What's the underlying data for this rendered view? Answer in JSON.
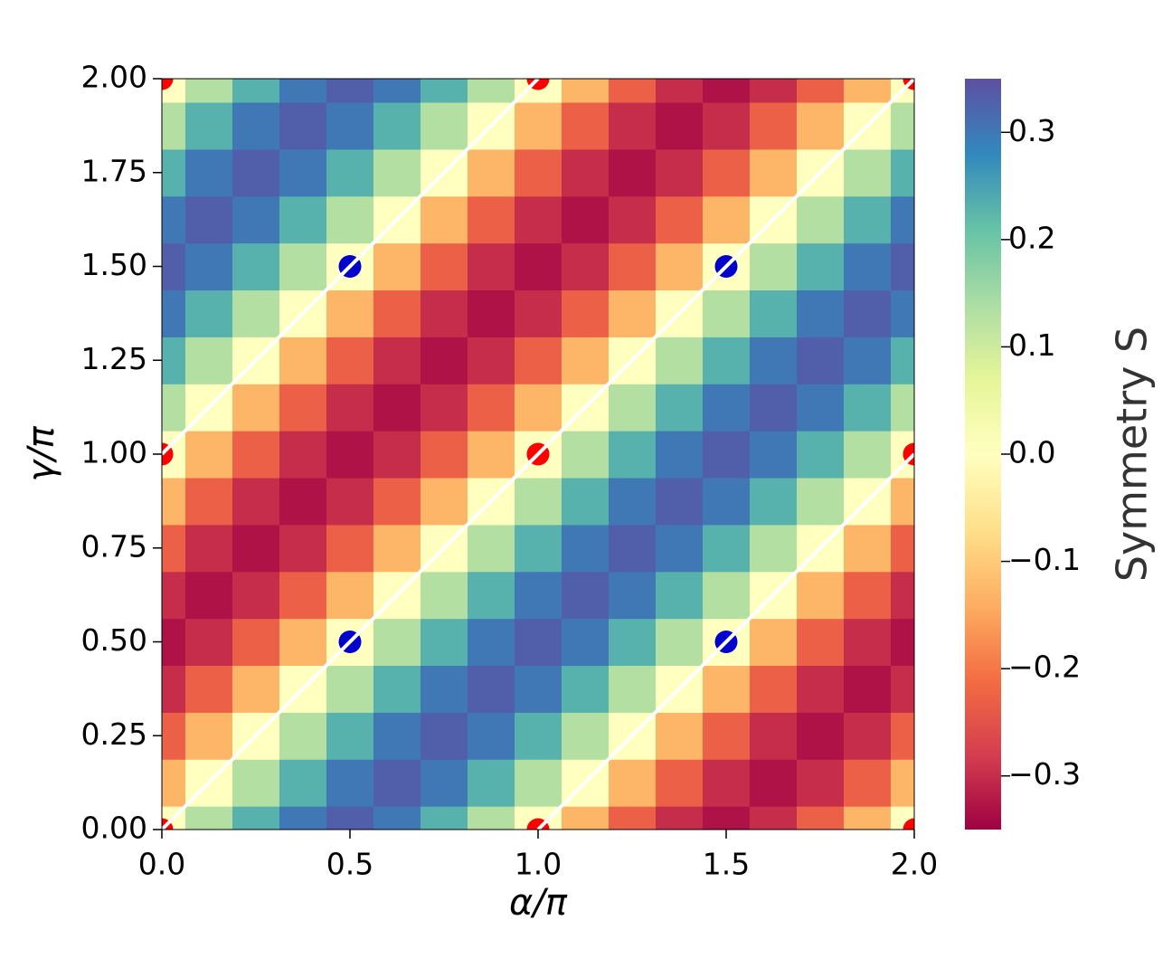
{
  "chart_data": {
    "type": "heatmap",
    "xlabel": "α/π",
    "ylabel": "γ/π",
    "colorbar_label": "Symmetry S",
    "colormap": "Spectral",
    "xlim": [
      0,
      2
    ],
    "ylim": [
      0,
      2
    ],
    "clim": [
      -0.35,
      0.35
    ],
    "xticks": [
      {
        "value": 0,
        "label": "0.0"
      },
      0.5,
      {
        "value": 1,
        "label": "1.0"
      },
      1.5,
      {
        "value": 2,
        "label": "2.0"
      }
    ],
    "yticks": [
      {
        "value": 0,
        "label": "0.00"
      },
      0.25,
      {
        "value": 0.5,
        "label": "0.50"
      },
      0.75,
      {
        "value": 1,
        "label": "1.00"
      },
      1.25,
      {
        "value": 1.5,
        "label": "1.50"
      },
      1.75,
      {
        "value": 2,
        "label": "2.00"
      }
    ],
    "cticks": [
      {
        "value": -0.3,
        "label": "−0.3"
      },
      {
        "value": -0.2,
        "label": "−0.2"
      },
      {
        "value": -0.1,
        "label": "−0.1"
      },
      {
        "value": 0,
        "label": "0.0"
      },
      0.1,
      0.2,
      0.3
    ],
    "x": [
      0,
      0.125,
      0.25,
      0.375,
      0.5,
      0.625,
      0.75,
      0.875,
      1,
      1.125,
      1.25,
      1.375,
      1.5,
      1.625,
      1.75,
      1.875,
      2
    ],
    "y": [
      0,
      0.125,
      0.25,
      0.375,
      0.5,
      0.625,
      0.75,
      0.875,
      1,
      1.125,
      1.25,
      1.375,
      1.5,
      1.625,
      1.75,
      1.875,
      2
    ],
    "z": [
      [
        0,
        0.13,
        0.23,
        0.3,
        0.33,
        0.3,
        0.23,
        0.13,
        0,
        -0.13,
        -0.23,
        -0.3,
        -0.33,
        -0.3,
        -0.23,
        -0.13,
        0
      ],
      [
        -0.13,
        0,
        0.13,
        0.23,
        0.3,
        0.33,
        0.3,
        0.23,
        0.13,
        0,
        -0.13,
        -0.23,
        -0.3,
        -0.33,
        -0.3,
        -0.23,
        -0.13
      ],
      [
        -0.23,
        -0.13,
        0,
        0.13,
        0.23,
        0.3,
        0.33,
        0.3,
        0.23,
        0.13,
        0,
        -0.13,
        -0.23,
        -0.3,
        -0.33,
        -0.3,
        -0.23
      ],
      [
        -0.3,
        -0.23,
        -0.13,
        0,
        0.13,
        0.23,
        0.3,
        0.33,
        0.3,
        0.23,
        0.13,
        0,
        -0.13,
        -0.23,
        -0.3,
        -0.33,
        -0.3
      ],
      [
        -0.33,
        -0.3,
        -0.23,
        -0.13,
        0,
        0.13,
        0.23,
        0.3,
        0.33,
        0.3,
        0.23,
        0.13,
        0,
        -0.13,
        -0.23,
        -0.3,
        -0.33
      ],
      [
        -0.3,
        -0.33,
        -0.3,
        -0.23,
        -0.13,
        0,
        0.13,
        0.23,
        0.3,
        0.33,
        0.3,
        0.23,
        0.13,
        0,
        -0.13,
        -0.23,
        -0.3
      ],
      [
        -0.23,
        -0.3,
        -0.33,
        -0.3,
        -0.23,
        -0.13,
        0,
        0.13,
        0.23,
        0.3,
        0.33,
        0.3,
        0.23,
        0.13,
        0,
        -0.13,
        -0.23
      ],
      [
        -0.13,
        -0.23,
        -0.3,
        -0.33,
        -0.3,
        -0.23,
        -0.13,
        0,
        0.13,
        0.23,
        0.3,
        0.33,
        0.3,
        0.23,
        0.13,
        0,
        -0.13
      ],
      [
        0,
        -0.13,
        -0.23,
        -0.3,
        -0.33,
        -0.3,
        -0.23,
        -0.13,
        0,
        0.13,
        0.23,
        0.3,
        0.33,
        0.3,
        0.23,
        0.13,
        0
      ],
      [
        0.13,
        0,
        -0.13,
        -0.23,
        -0.3,
        -0.33,
        -0.3,
        -0.23,
        -0.13,
        0,
        0.13,
        0.23,
        0.3,
        0.33,
        0.3,
        0.23,
        0.13
      ],
      [
        0.23,
        0.13,
        0,
        -0.13,
        -0.23,
        -0.3,
        -0.33,
        -0.3,
        -0.23,
        -0.13,
        0,
        0.13,
        0.23,
        0.3,
        0.33,
        0.3,
        0.23
      ],
      [
        0.3,
        0.23,
        0.13,
        0,
        -0.13,
        -0.23,
        -0.3,
        -0.33,
        -0.3,
        -0.23,
        -0.13,
        0,
        0.13,
        0.23,
        0.3,
        0.33,
        0.3
      ],
      [
        0.33,
        0.3,
        0.23,
        0.13,
        0,
        -0.13,
        -0.23,
        -0.3,
        -0.33,
        -0.3,
        -0.23,
        -0.13,
        0,
        0.13,
        0.23,
        0.3,
        0.33
      ],
      [
        0.3,
        0.33,
        0.3,
        0.23,
        0.13,
        0,
        -0.13,
        -0.23,
        -0.3,
        -0.33,
        -0.3,
        -0.23,
        -0.13,
        0,
        0.13,
        0.23,
        0.3
      ],
      [
        0.23,
        0.3,
        0.33,
        0.3,
        0.23,
        0.13,
        0,
        -0.13,
        -0.23,
        -0.3,
        -0.33,
        -0.3,
        -0.23,
        -0.13,
        0,
        0.13,
        0.23
      ],
      [
        0.13,
        0.23,
        0.3,
        0.33,
        0.3,
        0.23,
        0.13,
        0,
        -0.13,
        -0.23,
        -0.3,
        -0.33,
        -0.3,
        -0.23,
        -0.13,
        0,
        0.13
      ],
      [
        0,
        0.13,
        0.23,
        0.3,
        0.33,
        0.3,
        0.23,
        0.13,
        0,
        -0.13,
        -0.23,
        -0.3,
        -0.33,
        -0.3,
        -0.23,
        -0.13,
        0
      ]
    ],
    "points": [
      {
        "color": "#ff0000",
        "x": [
          0,
          1,
          2,
          0,
          1,
          2,
          0,
          1,
          2
        ],
        "y": [
          0,
          0,
          0,
          1,
          1,
          1,
          2,
          2,
          2
        ]
      },
      {
        "color": "#0000cc",
        "x": [
          0.5,
          1.5,
          0.5,
          1.5
        ],
        "y": [
          0.5,
          0.5,
          1.5,
          1.5
        ]
      }
    ],
    "lines": [
      {
        "color": "#ffffff",
        "x": [
          0,
          1
        ],
        "y": [
          1,
          2
        ]
      },
      {
        "color": "#ffffff",
        "x": [
          0,
          2
        ],
        "y": [
          0,
          2
        ]
      },
      {
        "color": "#ffffff",
        "x": [
          1,
          2
        ],
        "y": [
          0,
          1
        ]
      }
    ]
  }
}
